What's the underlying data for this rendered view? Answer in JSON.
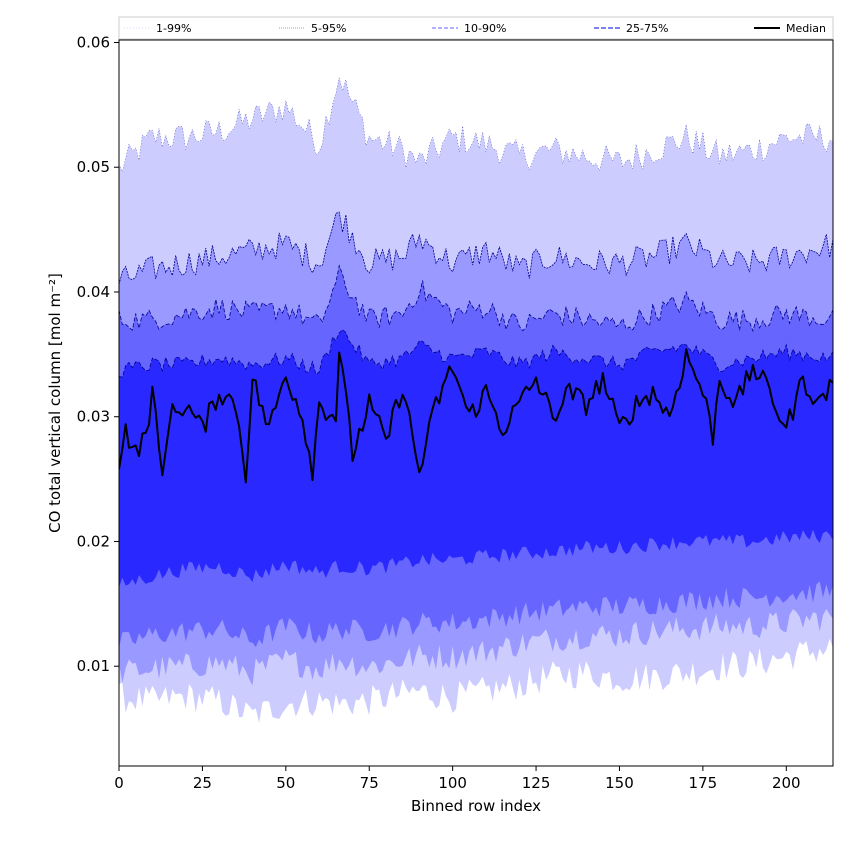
{
  "chart_data": {
    "type": "area",
    "xlabel": "Binned row index",
    "ylabel": "CO total vertical column [mol m⁻²]",
    "xlim": [
      0,
      214
    ],
    "ylim": [
      0.002,
      0.0602
    ],
    "x_ticks": [
      0,
      25,
      50,
      75,
      100,
      125,
      150,
      175,
      200
    ],
    "y_ticks": [
      0.01,
      0.02,
      0.03,
      0.04,
      0.05,
      0.06
    ],
    "y_tick_labels": [
      "0.01",
      "0.02",
      "0.03",
      "0.04",
      "0.05",
      "0.06"
    ],
    "legend_position": "top",
    "colors": {
      "band_outer": "#ccccff",
      "band_5_95": "#9999ff",
      "band_10_90": "#6666ff",
      "band_25_75": "#2929ff",
      "median": "#000000",
      "edge": "#00008b"
    },
    "series": [
      {
        "name": "1-99%",
        "line_style": "dotted",
        "color": "#ccccff",
        "control_x": [
          0,
          10,
          20,
          30,
          40,
          50,
          60,
          66,
          75,
          85,
          90,
          100,
          110,
          120,
          130,
          140,
          150,
          160,
          170,
          180,
          190,
          200,
          214
        ],
        "upper": [
          0.0495,
          0.052,
          0.052,
          0.0525,
          0.0535,
          0.0545,
          0.0515,
          0.057,
          0.052,
          0.051,
          0.05,
          0.052,
          0.0515,
          0.0505,
          0.051,
          0.0505,
          0.05,
          0.051,
          0.052,
          0.0505,
          0.051,
          0.052,
          0.052
        ],
        "lower": [
          0.0075,
          0.0072,
          0.0076,
          0.0072,
          0.006,
          0.007,
          0.0072,
          0.007,
          0.0072,
          0.0078,
          0.008,
          0.0075,
          0.008,
          0.0085,
          0.0092,
          0.0095,
          0.009,
          0.0092,
          0.0095,
          0.01,
          0.0102,
          0.0108,
          0.0115
        ]
      },
      {
        "name": "5-95%",
        "line_style": "dashed",
        "color": "#9999ff",
        "control_x": [
          0,
          10,
          20,
          30,
          40,
          50,
          60,
          66,
          75,
          85,
          90,
          100,
          110,
          120,
          130,
          140,
          150,
          160,
          170,
          180,
          190,
          200,
          214
        ],
        "upper": [
          0.0405,
          0.0415,
          0.042,
          0.0425,
          0.043,
          0.0435,
          0.042,
          0.046,
          0.042,
          0.0425,
          0.044,
          0.042,
          0.043,
          0.0415,
          0.0425,
          0.042,
          0.042,
          0.0425,
          0.0435,
          0.042,
          0.042,
          0.0425,
          0.0435
        ],
        "lower": [
          0.0095,
          0.0098,
          0.01,
          0.0103,
          0.0095,
          0.0105,
          0.0098,
          0.0105,
          0.01,
          0.0105,
          0.0108,
          0.0108,
          0.0112,
          0.0118,
          0.0122,
          0.0125,
          0.0125,
          0.0128,
          0.013,
          0.0132,
          0.0132,
          0.0135,
          0.014
        ]
      },
      {
        "name": "10-90%",
        "line_style": "dashed",
        "color": "#6666ff",
        "control_x": [
          0,
          10,
          20,
          30,
          40,
          50,
          60,
          66,
          75,
          85,
          90,
          100,
          110,
          120,
          130,
          140,
          150,
          160,
          170,
          180,
          190,
          200,
          214
        ],
        "upper": [
          0.0375,
          0.0375,
          0.038,
          0.0385,
          0.038,
          0.0385,
          0.037,
          0.041,
          0.0375,
          0.038,
          0.04,
          0.038,
          0.0385,
          0.037,
          0.038,
          0.0375,
          0.037,
          0.038,
          0.039,
          0.0375,
          0.0375,
          0.038,
          0.0375
        ],
        "lower": [
          0.0118,
          0.0125,
          0.0128,
          0.013,
          0.012,
          0.0132,
          0.0125,
          0.013,
          0.0128,
          0.0132,
          0.0135,
          0.0135,
          0.0138,
          0.0142,
          0.0145,
          0.0148,
          0.0148,
          0.015,
          0.0152,
          0.0155,
          0.0155,
          0.0158,
          0.016
        ]
      },
      {
        "name": "25-75%",
        "line_style": "dashed",
        "color": "#2929ff",
        "control_x": [
          0,
          10,
          20,
          30,
          40,
          50,
          60,
          66,
          75,
          85,
          90,
          100,
          110,
          120,
          130,
          140,
          150,
          160,
          170,
          180,
          190,
          200,
          214
        ],
        "upper": [
          0.0335,
          0.034,
          0.034,
          0.0345,
          0.034,
          0.0345,
          0.0335,
          0.037,
          0.034,
          0.0345,
          0.0355,
          0.0345,
          0.035,
          0.034,
          0.035,
          0.0345,
          0.034,
          0.035,
          0.0355,
          0.034,
          0.0345,
          0.035,
          0.0345
        ],
        "lower": [
          0.0165,
          0.0172,
          0.0178,
          0.018,
          0.0172,
          0.0182,
          0.0175,
          0.018,
          0.0178,
          0.0182,
          0.0185,
          0.0185,
          0.0188,
          0.019,
          0.0192,
          0.0195,
          0.0195,
          0.0198,
          0.02,
          0.02,
          0.02,
          0.0203,
          0.0205
        ]
      },
      {
        "name": "Median",
        "line_style": "solid",
        "color": "#000000",
        "control_x": [
          0,
          2,
          5,
          8,
          10,
          13,
          15,
          20,
          25,
          30,
          35,
          38,
          40,
          45,
          50,
          55,
          58,
          60,
          65,
          66,
          70,
          75,
          80,
          85,
          90,
          95,
          100,
          105,
          110,
          115,
          120,
          125,
          130,
          135,
          140,
          145,
          150,
          155,
          160,
          165,
          170,
          175,
          178,
          180,
          185,
          190,
          195,
          200,
          205,
          210,
          214
        ],
        "values": [
          0.0265,
          0.029,
          0.027,
          0.0285,
          0.032,
          0.025,
          0.03,
          0.031,
          0.029,
          0.032,
          0.031,
          0.0255,
          0.033,
          0.029,
          0.0335,
          0.03,
          0.0258,
          0.031,
          0.03,
          0.0355,
          0.027,
          0.031,
          0.028,
          0.0325,
          0.0255,
          0.031,
          0.034,
          0.03,
          0.032,
          0.029,
          0.031,
          0.033,
          0.03,
          0.032,
          0.031,
          0.033,
          0.029,
          0.031,
          0.032,
          0.03,
          0.035,
          0.032,
          0.0285,
          0.033,
          0.031,
          0.034,
          0.032,
          0.029,
          0.033,
          0.031,
          0.033
        ]
      }
    ]
  }
}
